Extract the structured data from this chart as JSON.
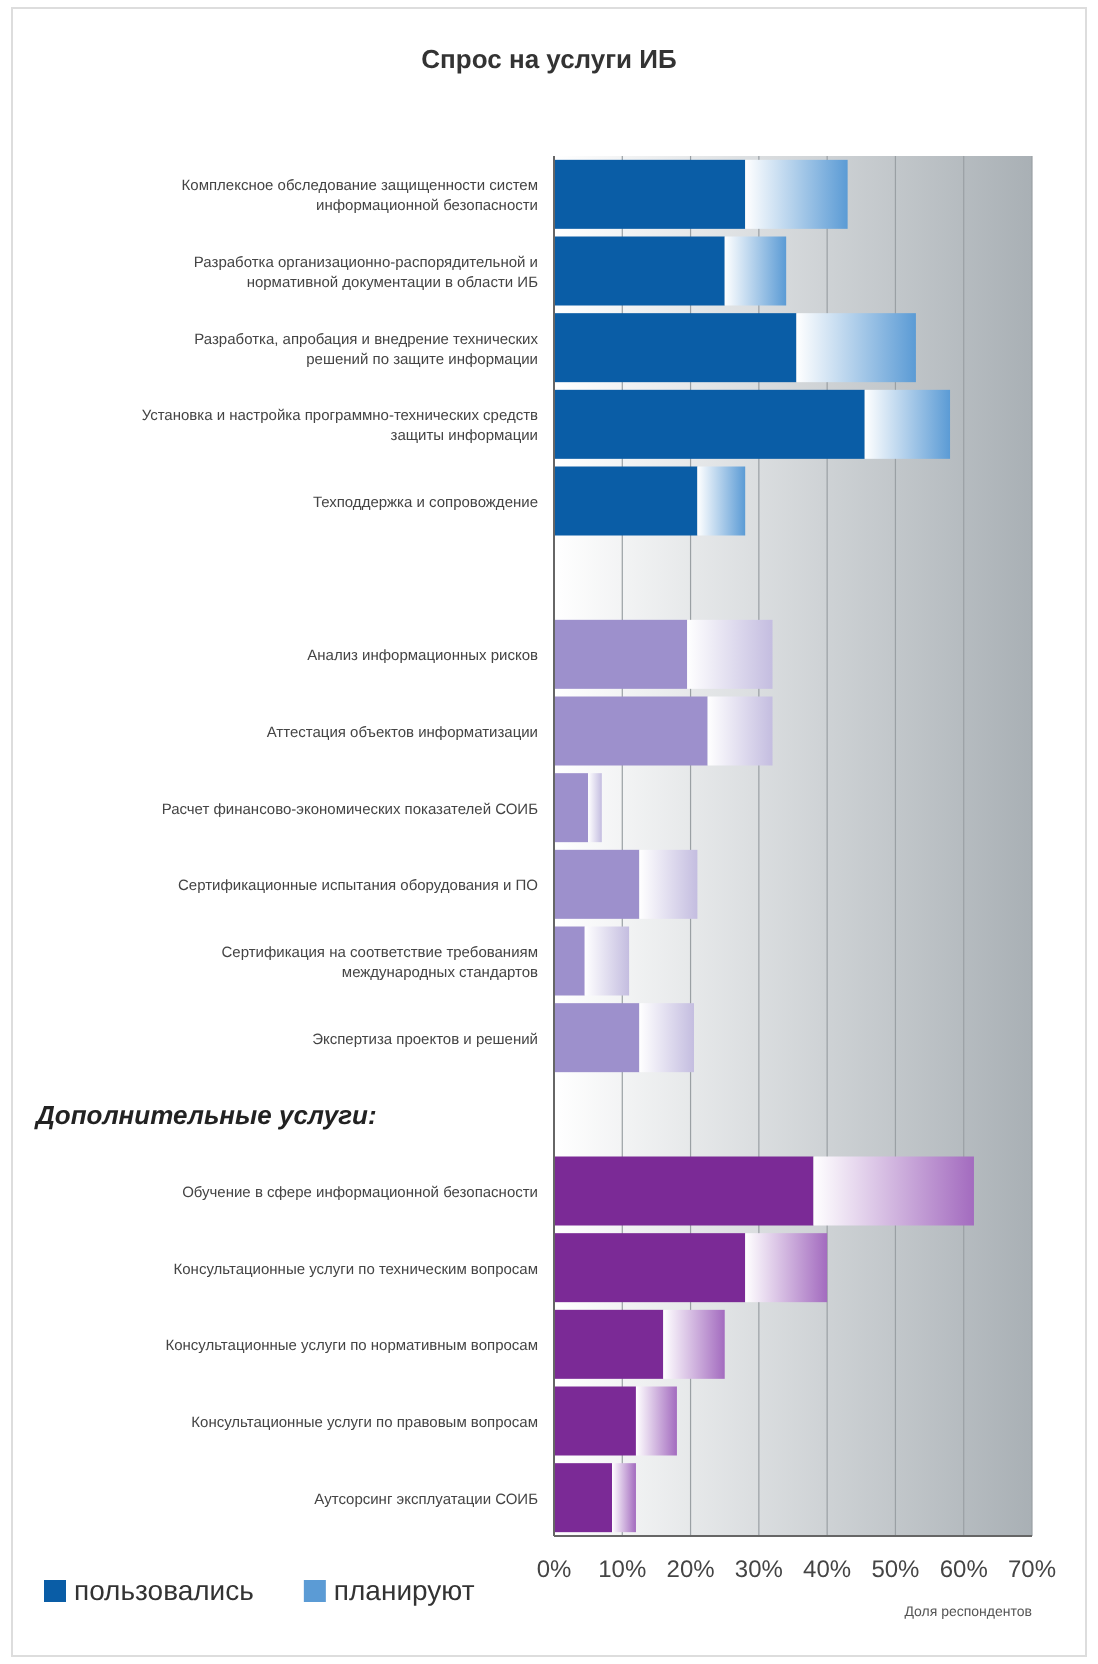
{
  "chart_data": {
    "type": "bar",
    "orientation": "horizontal",
    "stacked": true,
    "title": "Спрос на услуги ИБ",
    "categories": [
      "Комплексное обследование защищенности систем информационной безопасности",
      "Разработка организационно-распорядительной и нормативной документации в области ИБ",
      "Разработка, апробация и внедрение технических решений по защите информации",
      "Установка и настройка программно-технических средств защиты информации",
      "Техподдержка и сопровождение",
      null,
      "Анализ информационных рисков",
      "Аттестация объектов информатизации",
      "Расчет финансово-экономических показателей СОИБ",
      "Сертификационные испытания оборудования и ПО",
      "Сертификация на соответствие требованиям международных стандартов",
      "Экспертиза проектов и решений",
      null,
      "Обучение в сфере информационной безопасности",
      "Консультационные услуги по техническим вопросам",
      "Консультационные услуги по нормативным вопросам",
      "Консультационные услуги по правовым вопросам",
      "Аутсорсинг эксплуатации СОИБ"
    ],
    "series": [
      {
        "name": "пользовались",
        "color": "#0a5da6",
        "colors": [
          "#0a5da6",
          "#0a5da6",
          "#0a5da6",
          "#0a5da6",
          "#0a5da6",
          null,
          "#9d90cc",
          "#9d90cc",
          "#9d90cc",
          "#9d90cc",
          "#9d90cc",
          "#9d90cc",
          null,
          "#7b2a96",
          "#7b2a96",
          "#7b2a96",
          "#7b2a96",
          "#7b2a96"
        ],
        "values": [
          28,
          25,
          35.5,
          45.5,
          21,
          null,
          19.5,
          22.5,
          5,
          12.5,
          4.5,
          12.5,
          null,
          38,
          28,
          16,
          12,
          8.5
        ]
      },
      {
        "name": "планируют",
        "color": "#5b9bd5",
        "colors": [
          "#5b9bd5",
          "#5b9bd5",
          "#5b9bd5",
          "#5b9bd5",
          "#5b9bd5",
          null,
          "#c4bde0",
          "#c4bde0",
          "#c4bde0",
          "#c4bde0",
          "#c4bde0",
          "#c4bde0",
          null,
          "#a36bbf",
          "#a36bbf",
          "#a36bbf",
          "#a36bbf",
          "#a36bbf"
        ],
        "values": [
          15,
          9,
          17.5,
          12.5,
          7,
          null,
          12.5,
          9.5,
          2,
          8.5,
          6.5,
          8,
          null,
          23.5,
          12,
          9,
          6,
          3.5
        ]
      }
    ],
    "xlim": [
      0,
      70
    ],
    "xticks": [
      {
        "value": 0,
        "label": "0%"
      },
      {
        "value": 10,
        "label": "10%"
      },
      {
        "value": 20,
        "label": "20%"
      },
      {
        "value": 30,
        "label": "30%"
      },
      {
        "value": 40,
        "label": "40%"
      },
      {
        "value": 50,
        "label": "50%"
      },
      {
        "value": 60,
        "label": "60%"
      },
      {
        "value": 70,
        "label": "70%"
      }
    ],
    "grid": "x",
    "legend": "bottom left",
    "annotations": [
      "Дополнительные услуги:",
      "Доля респондентов"
    ]
  }
}
